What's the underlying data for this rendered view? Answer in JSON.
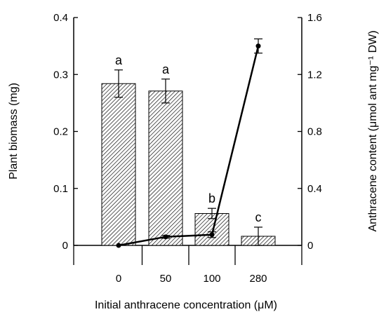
{
  "chart_data": {
    "type": "bar+line",
    "categories": [
      "0",
      "50",
      "100",
      "280"
    ],
    "xlabel": "Initial anthracene concentration (μM)",
    "ylabel_left": "Plant biomass (mg)",
    "ylabel_right": "Anthracene content (μmol ant mg⁻¹ DW)",
    "left_axis": {
      "lim": [
        0,
        0.4
      ],
      "ticks": [
        0,
        0.1,
        0.2,
        0.3,
        0.4
      ],
      "tick_labels": [
        "0",
        "0.1",
        "0.2",
        "0.3",
        "0.4"
      ]
    },
    "right_axis": {
      "lim": [
        0,
        1.6
      ],
      "ticks": [
        0,
        0.4,
        0.8,
        1.2,
        1.6
      ],
      "tick_labels": [
        "0",
        "0.4",
        "0.8",
        "1.2",
        "1.6"
      ]
    },
    "bars": {
      "axis": "left",
      "values": [
        0.284,
        0.271,
        0.056,
        0.016
      ],
      "errors": [
        0.024,
        0.021,
        0.009,
        0.016
      ],
      "letters": [
        "a",
        "a",
        "b",
        "c"
      ],
      "fill": "hatched"
    },
    "line": {
      "axis": "right",
      "x": [
        "0",
        "50",
        "100",
        "280"
      ],
      "values": [
        0.0,
        0.06,
        0.075,
        1.4
      ],
      "errors": [
        0.0,
        0.01,
        0.02,
        0.05
      ],
      "color": "#000000"
    },
    "grid": false,
    "legend": "none"
  }
}
